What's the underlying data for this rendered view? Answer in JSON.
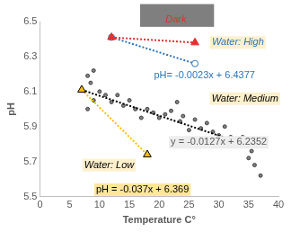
{
  "chart_data": {
    "type": "scatter",
    "x_label": "Temperature C°",
    "y_label": "pH",
    "xlim": [
      0,
      40
    ],
    "xticks": [
      0,
      5,
      10,
      15,
      20,
      25,
      30,
      35,
      40
    ],
    "ylim": [
      5.5,
      6.5
    ],
    "yticks": [
      5.5,
      5.7,
      5.9,
      6.1,
      6.3,
      6.5
    ],
    "grid": false,
    "series": [
      {
        "color": "#404040",
        "marker": "circle",
        "x": [
          8,
          9,
          8.5,
          9,
          8,
          10,
          11,
          12,
          13,
          14,
          15,
          16,
          17,
          18,
          19,
          20,
          21,
          22,
          23,
          23.5,
          24,
          25,
          26,
          27,
          28,
          29,
          30,
          31,
          32,
          33,
          34,
          35,
          35.5,
          36,
          37,
          36.5
        ],
        "values": [
          6.19,
          6.22,
          6.15,
          6.05,
          6.0,
          6.1,
          6.08,
          6.04,
          6.08,
          6.02,
          6.05,
          6.0,
          5.95,
          6.0,
          5.98,
          5.95,
          5.97,
          5.99,
          6.04,
          5.93,
          5.96,
          5.88,
          5.94,
          5.89,
          5.92,
          5.87,
          5.85,
          5.9,
          5.84,
          5.82,
          5.84,
          5.72,
          5.76,
          5.68,
          5.62,
          5.79
        ]
      },
      {
        "color": "#000000",
        "marker": "none",
        "line_style": "dotted",
        "x": [
          7,
          36
        ],
        "values": [
          6.11,
          5.78
        ]
      },
      {
        "color": "#2e75b6",
        "marker": "circle",
        "line_style": "dotted",
        "x": [
          12,
          26
        ],
        "values": [
          6.41,
          6.26
        ]
      },
      {
        "color": "#e03030",
        "marker": "triangle",
        "line_style": "dotted",
        "x": [
          12,
          26
        ],
        "values": [
          6.41,
          6.38
        ]
      },
      {
        "color": "#ffc000",
        "marker": "triangle",
        "line_style": "dotted",
        "x": [
          7,
          18
        ],
        "values": [
          6.11,
          5.74
        ]
      }
    ],
    "annotations": [
      {
        "text": "Dark",
        "color": "#e03030"
      },
      {
        "text": "Water: High",
        "color": "#2e75b6"
      },
      {
        "text": "pH= -0.0023x + 6.4377",
        "color": "#2e75b6"
      },
      {
        "text": "Water: Medium",
        "color": "#000000"
      },
      {
        "text": "y = -0.0127x + 6.2352",
        "color": "#595959"
      },
      {
        "text": "Water: Low",
        "color": "#000000"
      },
      {
        "text": "pH = -0.037x + 6.369",
        "color": "#000000"
      }
    ]
  }
}
